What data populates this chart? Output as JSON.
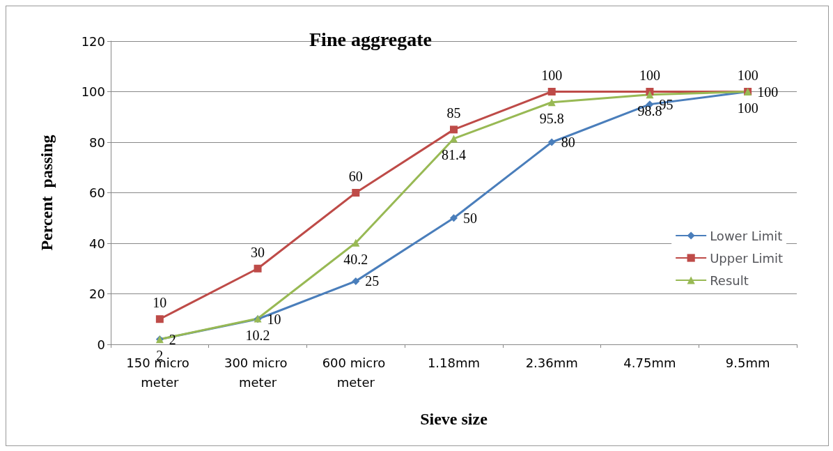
{
  "chart_data": {
    "type": "line",
    "title": "Fine aggregate",
    "xlabel": "Sieve size",
    "ylabel": "Percent  passing",
    "categories": [
      "150 micro meter",
      "300 micro meter",
      "600 micro meter",
      "1.18mm",
      "2.36mm",
      "4.75mm",
      "9.5mm"
    ],
    "series": [
      {
        "name": "Lower Limit",
        "color": "#4a7ebb",
        "marker": "diamond",
        "values": [
          2,
          10,
          25,
          50,
          80,
          95,
          100
        ]
      },
      {
        "name": "Upper Limit",
        "color": "#be4b48",
        "marker": "square",
        "values": [
          10,
          30,
          60,
          85,
          100,
          100,
          100
        ]
      },
      {
        "name": "Result",
        "color": "#98b954",
        "marker": "triangle",
        "values": [
          2,
          10.2,
          40.2,
          81.4,
          95.8,
          98.8,
          100
        ]
      }
    ],
    "ylim": [
      0,
      120
    ],
    "yticks": [
      0,
      20,
      40,
      60,
      80,
      100,
      120
    ],
    "grid": "y",
    "legend": "right",
    "data_labels": true,
    "line_style": "solid"
  }
}
